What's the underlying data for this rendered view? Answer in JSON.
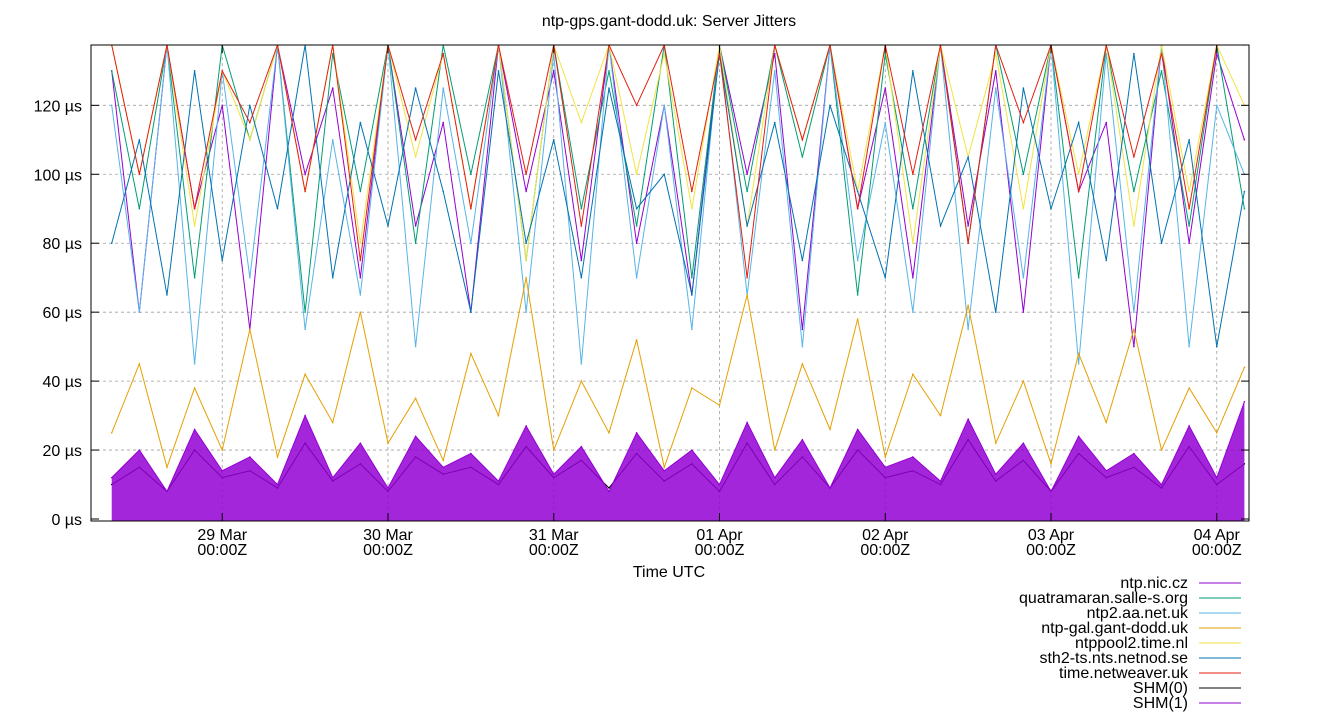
{
  "chart_data": {
    "type": "line",
    "title": "ntp-gps.gant-dodd.uk: Server Jitters",
    "xlabel": "Time UTC",
    "ylabel": "",
    "ylim": [
      0,
      137.5
    ],
    "xlim": [
      "28 Mar 05:00",
      "04 Apr 04:40"
    ],
    "grid": true,
    "legend_position": "bottom-right",
    "y_ticks": [
      "0 µs",
      "20 µs",
      "40 µs",
      "60 µs",
      "80 µs",
      "100 µs",
      "120 µs"
    ],
    "y_tick_values": [
      0,
      20,
      40,
      60,
      80,
      100,
      120
    ],
    "x_ticks": [
      {
        "line1": "29 Mar",
        "line2": "00:00Z",
        "at": "29 Mar 00:00"
      },
      {
        "line1": "30 Mar",
        "line2": "00:00Z",
        "at": "30 Mar 00:00"
      },
      {
        "line1": "31 Mar",
        "line2": "00:00Z",
        "at": "31 Mar 00:00"
      },
      {
        "line1": "01 Apr",
        "line2": "00:00Z",
        "at": "01 Apr 00:00"
      },
      {
        "line1": "02 Apr",
        "line2": "00:00Z",
        "at": "02 Apr 00:00"
      },
      {
        "line1": "03 Apr",
        "line2": "00:00Z",
        "at": "03 Apr 00:00"
      },
      {
        "line1": "04 Apr",
        "line2": "00:00Z",
        "at": "04 Apr 00:00"
      }
    ],
    "x": [
      "28 Mar 08:00",
      "28 Mar 12:00",
      "28 Mar 16:00",
      "28 Mar 20:00",
      "29 Mar 00:00",
      "29 Mar 04:00",
      "29 Mar 08:00",
      "29 Mar 12:00",
      "29 Mar 16:00",
      "29 Mar 20:00",
      "30 Mar 00:00",
      "30 Mar 04:00",
      "30 Mar 08:00",
      "30 Mar 12:00",
      "30 Mar 16:00",
      "30 Mar 20:00",
      "31 Mar 00:00",
      "31 Mar 04:00",
      "31 Mar 08:00",
      "31 Mar 12:00",
      "31 Mar 16:00",
      "31 Mar 20:00",
      "01 Apr 00:00",
      "01 Apr 04:00",
      "01 Apr 08:00",
      "01 Apr 12:00",
      "01 Apr 16:00",
      "01 Apr 20:00",
      "02 Apr 00:00",
      "02 Apr 04:00",
      "02 Apr 08:00",
      "02 Apr 12:00",
      "02 Apr 16:00",
      "02 Apr 20:00",
      "03 Apr 00:00",
      "03 Apr 04:00",
      "03 Apr 08:00",
      "03 Apr 12:00",
      "03 Apr 16:00",
      "03 Apr 20:00",
      "04 Apr 00:00",
      "04 Apr 04:00"
    ],
    "series": [
      {
        "name": "ntp.nic.cz",
        "color": "#9400d3",
        "values": [
          130,
          60,
          145,
          90,
          120,
          55,
          140,
          100,
          125,
          70,
          150,
          85,
          115,
          60,
          140,
          95,
          130,
          75,
          145,
          80,
          120,
          65,
          150,
          100,
          135,
          55,
          140,
          90,
          125,
          70,
          150,
          85,
          130,
          60,
          145,
          95,
          115,
          50,
          140,
          80,
          135,
          110
        ]
      },
      {
        "name": "quatramaran.salle-s.org",
        "color": "#009e73",
        "values": [
          130,
          90,
          150,
          70,
          140,
          110,
          150,
          60,
          135,
          95,
          145,
          80,
          150,
          100,
          140,
          75,
          150,
          90,
          130,
          85,
          145,
          70,
          150,
          95,
          140,
          105,
          150,
          65,
          135,
          90,
          145,
          80,
          150,
          100,
          140,
          70,
          150,
          95,
          130,
          85,
          145,
          90
        ]
      },
      {
        "name": "ntp2.aa.net.uk",
        "color": "#56b4e9",
        "values": [
          120,
          60,
          140,
          45,
          130,
          70,
          150,
          55,
          110,
          65,
          145,
          50,
          125,
          80,
          140,
          60,
          135,
          45,
          150,
          70,
          120,
          55,
          140,
          65,
          130,
          50,
          145,
          75,
          115,
          60,
          150,
          55,
          125,
          70,
          140,
          45,
          135,
          60,
          150,
          50,
          120,
          100
        ]
      },
      {
        "name": "ntp-gal.gant-dodd.uk",
        "color": "#e69f00",
        "values": [
          25,
          45,
          15,
          38,
          20,
          55,
          18,
          42,
          28,
          60,
          22,
          35,
          17,
          48,
          30,
          70,
          20,
          40,
          25,
          52,
          15,
          38,
          33,
          65,
          20,
          45,
          26,
          58,
          18,
          42,
          30,
          62,
          22,
          40,
          16,
          48,
          28,
          55,
          20,
          38,
          25,
          44
        ]
      },
      {
        "name": "ntppool2.time.nl",
        "color": "#f0e442",
        "values": [
          140,
          100,
          150,
          85,
          130,
          110,
          150,
          95,
          145,
          80,
          150,
          105,
          135,
          90,
          150,
          75,
          140,
          115,
          150,
          100,
          135,
          90,
          150,
          85,
          145,
          110,
          150,
          95,
          140,
          80,
          150,
          105,
          135,
          90,
          150,
          100,
          145,
          85,
          150,
          95,
          140,
          120
        ]
      },
      {
        "name": "sth2-ts.nts.netnod.se",
        "color": "#0072b2",
        "values": [
          80,
          110,
          65,
          130,
          75,
          120,
          90,
          140,
          70,
          115,
          85,
          125,
          95,
          60,
          130,
          80,
          110,
          70,
          125,
          90,
          100,
          65,
          135,
          85,
          115,
          75,
          120,
          95,
          70,
          130,
          85,
          105,
          60,
          125,
          90,
          115,
          75,
          135,
          80,
          110,
          50,
          95
        ]
      },
      {
        "name": "time.netweaver.uk",
        "color": "#e51e10",
        "values": [
          140,
          100,
          150,
          90,
          130,
          115,
          145,
          95,
          140,
          75,
          150,
          110,
          135,
          90,
          145,
          100,
          150,
          85,
          140,
          120,
          150,
          95,
          135,
          70,
          145,
          110,
          150,
          90,
          140,
          100,
          150,
          80,
          145,
          115,
          140,
          95,
          150,
          105,
          135,
          90,
          150,
          140
        ]
      },
      {
        "name": "SHM(0)",
        "color": "#000000",
        "values": [
          10,
          15,
          8,
          20,
          12,
          14,
          9,
          22,
          11,
          16,
          8,
          18,
          13,
          15,
          10,
          21,
          12,
          17,
          9,
          19,
          11,
          16,
          8,
          22,
          10,
          18,
          9,
          20,
          12,
          14,
          10,
          23,
          11,
          17,
          8,
          19,
          12,
          15,
          9,
          21,
          10,
          16
        ]
      },
      {
        "name": "SHM(1)",
        "color": "#9400d3",
        "values": [
          12,
          20,
          8,
          26,
          14,
          18,
          10,
          30,
          12,
          22,
          9,
          24,
          15,
          19,
          11,
          27,
          13,
          21,
          8,
          25,
          14,
          20,
          10,
          28,
          12,
          23,
          9,
          26,
          15,
          18,
          11,
          29,
          13,
          22,
          8,
          24,
          14,
          19,
          10,
          27,
          12,
          34
        ]
      }
    ]
  }
}
